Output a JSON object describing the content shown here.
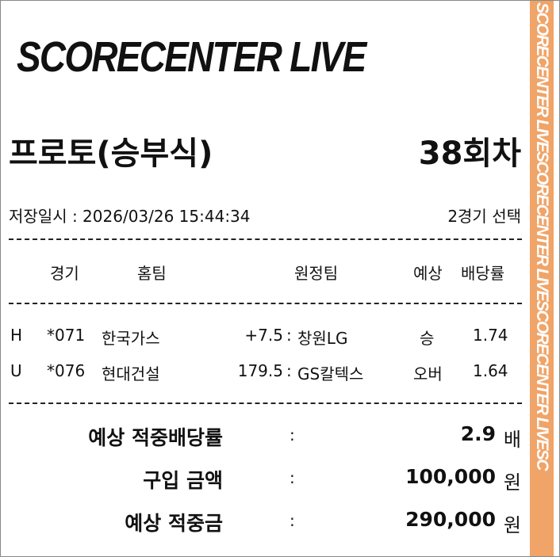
{
  "logo": "SCORECENTER LIVE",
  "side_banner": "SCORECENTER LIVESCORECENTER LIVESCORECENTER LIVESC",
  "accent_color": "#f0a468",
  "game_type": "프로토(승부식)",
  "round": "38회차",
  "saved_at": "저장일시 : 2026/03/26 15:44:34",
  "selected_count": "2경기 선택",
  "headers": {
    "game": "경기",
    "home": "홈팀",
    "away": "원정팀",
    "pick": "예상",
    "odds": "배당률"
  },
  "rows": [
    {
      "type": "H",
      "game": "*071",
      "home": "한국가스",
      "line": "+7.5",
      "away": "창원LG",
      "pick": "승",
      "odds": "1.74"
    },
    {
      "type": "U",
      "game": "*076",
      "home": "현대건설",
      "line": "179.5",
      "away": "GS칼텍스",
      "pick": "오버",
      "odds": "1.64"
    }
  ],
  "summary": [
    {
      "label": "예상 적중배당률",
      "sep": ":",
      "value": "2.9",
      "unit": "배"
    },
    {
      "label": "구입 금액",
      "sep": ":",
      "value": "100,000",
      "unit": "원"
    },
    {
      "label": "예상 적중금",
      "sep": ":",
      "value": "290,000",
      "unit": "원"
    }
  ]
}
